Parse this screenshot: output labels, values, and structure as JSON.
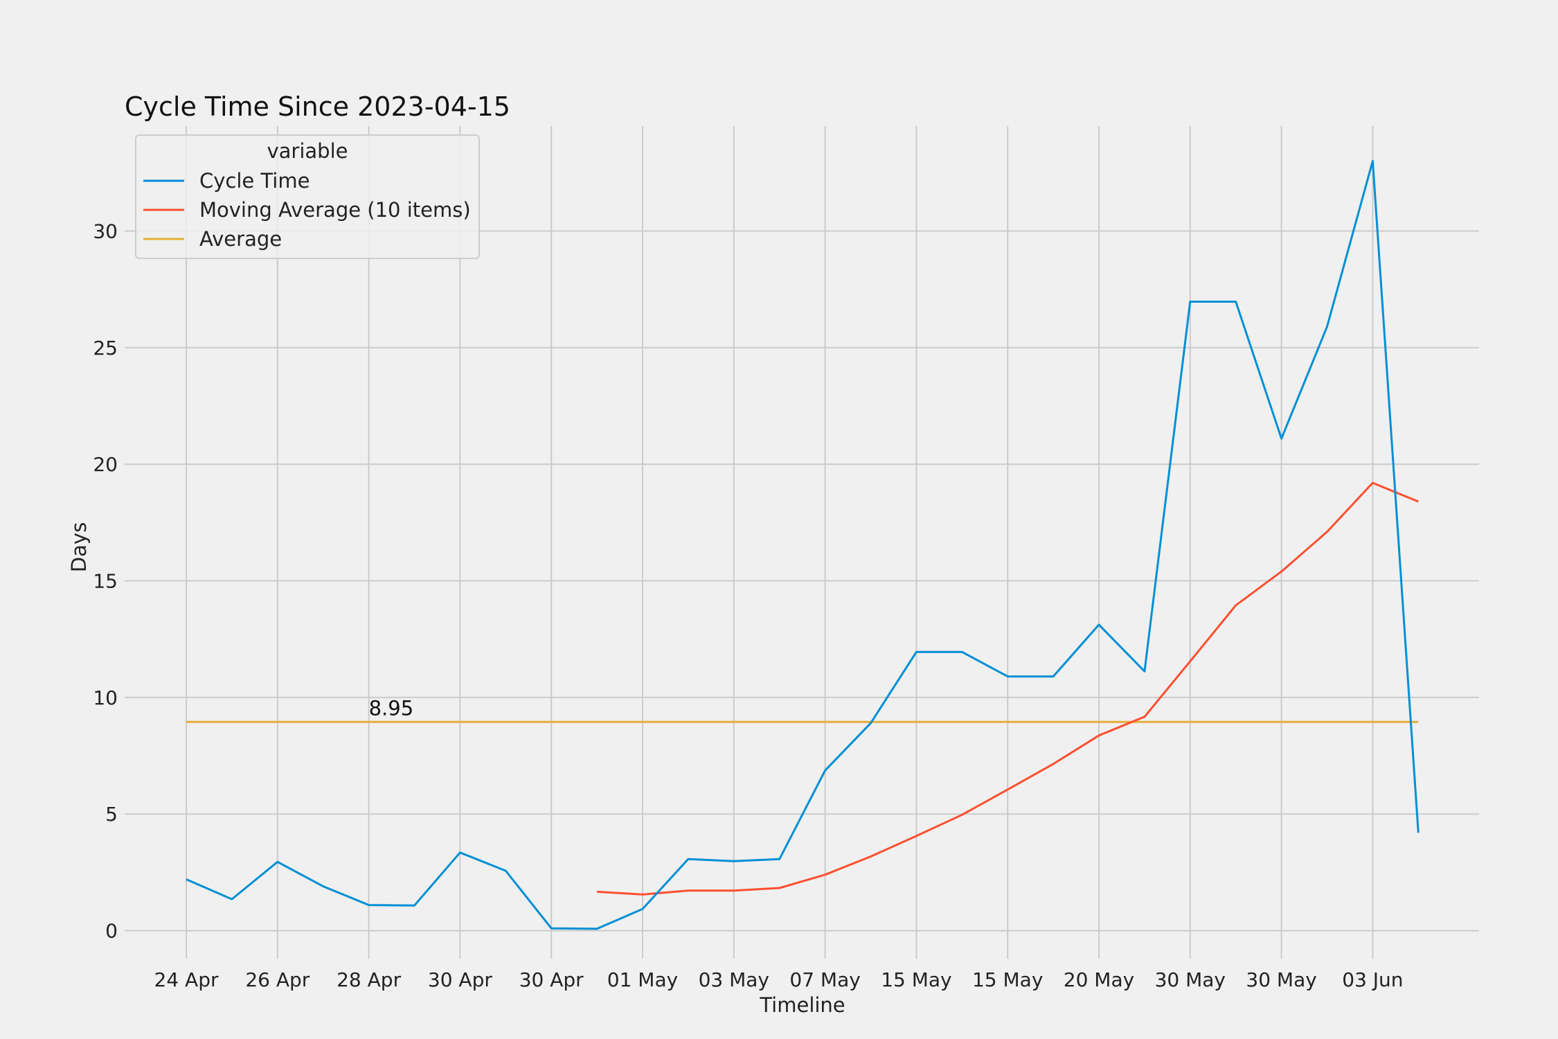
{
  "chart_data": {
    "type": "line",
    "title": "Cycle Time Since 2023-04-15",
    "xlabel": "Timeline",
    "ylabel": "Days",
    "ylim": [
      -1.2,
      34.5
    ],
    "yticks": [
      0,
      5,
      10,
      15,
      20,
      25,
      30
    ],
    "x_tick_labels": [
      "24 Apr",
      "26 Apr",
      "28 Apr",
      "30 Apr",
      "30 Apr",
      "01 May",
      "03 May",
      "07 May",
      "15 May",
      "15 May",
      "20 May",
      "30 May",
      "30 May",
      "03 Jun"
    ],
    "grid": true,
    "legend": {
      "title": "variable",
      "placement": "top-left"
    },
    "series": [
      {
        "name": "Cycle Time",
        "color": "#008fd5",
        "values": [
          2.2,
          1.35,
          2.95,
          1.9,
          1.1,
          1.08,
          3.35,
          2.57,
          0.1,
          0.08,
          0.93,
          3.07,
          2.98,
          3.07,
          6.87,
          8.9,
          11.95,
          11.95,
          10.9,
          10.9,
          13.12,
          11.12,
          26.97,
          26.97,
          21.1,
          25.9,
          33.0,
          4.2
        ]
      },
      {
        "name": "Moving Average (10 items)",
        "color": "#fc4f30",
        "values": [
          null,
          null,
          null,
          null,
          null,
          null,
          null,
          null,
          null,
          1.67,
          1.55,
          1.72,
          1.72,
          1.83,
          2.4,
          3.18,
          4.06,
          4.97,
          6.05,
          7.15,
          8.37,
          9.17,
          11.55,
          13.95,
          15.4,
          17.1,
          19.2,
          18.4
        ]
      },
      {
        "name": "Average",
        "color": "#e5ae38",
        "values": [
          8.95,
          8.95,
          8.95,
          8.95,
          8.95,
          8.95,
          8.95,
          8.95,
          8.95,
          8.95,
          8.95,
          8.95,
          8.95,
          8.95,
          8.95,
          8.95,
          8.95,
          8.95,
          8.95,
          8.95,
          8.95,
          8.95,
          8.95,
          8.95,
          8.95,
          8.95,
          8.95,
          8.95
        ]
      }
    ],
    "annotations": [
      {
        "text": "8.95",
        "x_index": 4,
        "y": 8.95
      }
    ]
  }
}
